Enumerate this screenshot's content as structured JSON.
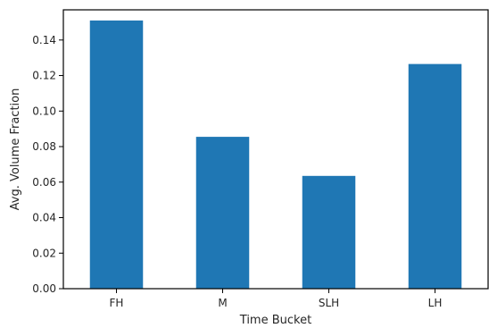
{
  "chart_data": {
    "type": "bar",
    "categories": [
      "FH",
      "M",
      "SLH",
      "LH"
    ],
    "values": [
      0.151,
      0.0855,
      0.0635,
      0.1265
    ],
    "title": "",
    "xlabel": "Time Bucket",
    "ylabel": "Avg. Volume Fraction",
    "ylim": [
      0,
      0.157
    ],
    "yticks": [
      "0.00",
      "0.02",
      "0.04",
      "0.06",
      "0.08",
      "0.10",
      "0.12",
      "0.14"
    ],
    "bar_color": "#1f77b4",
    "grid": false,
    "legend": "none"
  }
}
